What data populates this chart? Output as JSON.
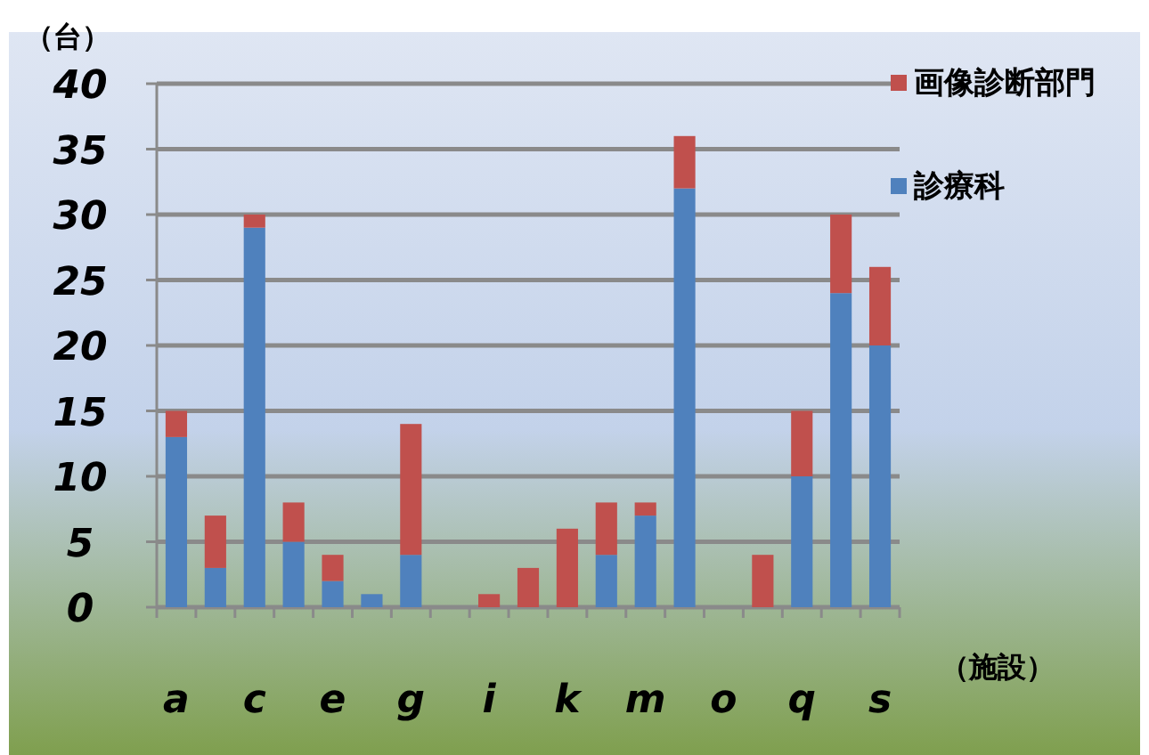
{
  "chart_data": {
    "type": "bar",
    "stacked": true,
    "ylabel": "（台）",
    "xlabel": "（施設）",
    "categories": [
      "a",
      null,
      "c",
      null,
      "e",
      null,
      "g",
      null,
      "i",
      null,
      "k",
      null,
      "m",
      null,
      "o",
      null,
      "q",
      null,
      "s"
    ],
    "series": [
      {
        "name": "診療科",
        "color": "#4f81bd",
        "values": [
          13,
          3,
          29,
          5,
          2,
          1,
          4,
          0,
          0,
          0,
          0,
          4,
          7,
          32,
          0,
          0,
          10,
          24,
          20
        ]
      },
      {
        "name": "画像診断部門",
        "color": "#c0504d",
        "values": [
          2,
          4,
          1,
          3,
          2,
          0,
          10,
          0,
          1,
          3,
          6,
          4,
          1,
          4,
          0,
          4,
          5,
          6,
          6
        ]
      }
    ],
    "ylim": [
      0,
      40
    ],
    "yticks": [
      0,
      5,
      10,
      15,
      20,
      25,
      30,
      35,
      40
    ],
    "grid": "y",
    "legend": "right"
  }
}
